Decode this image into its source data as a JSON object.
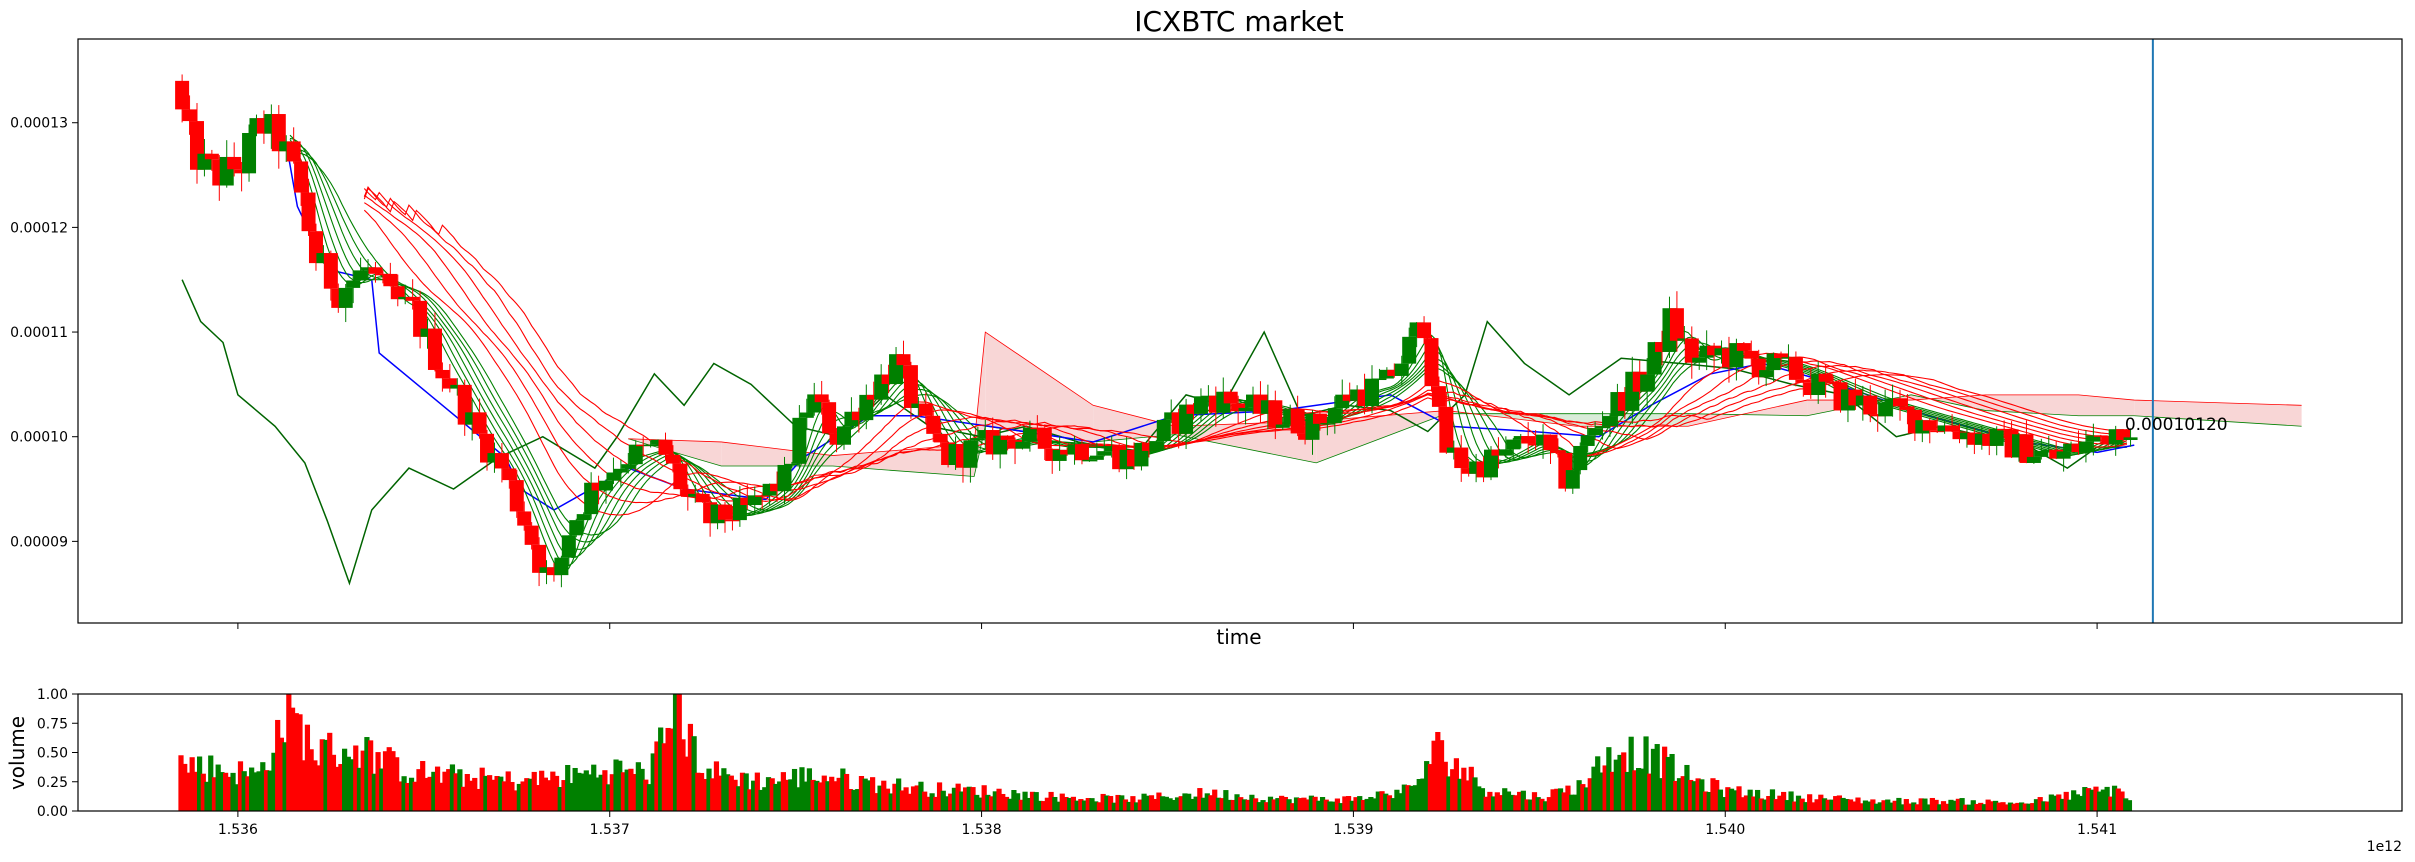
{
  "chart_data": [
    {
      "type": "candlestick",
      "title": "ICXBTC market",
      "xlabel": "time",
      "ylabel": "",
      "xlim": [
        1535.57,
        1541.82
      ],
      "ylim": [
        8.22e-05,
        0.000138
      ],
      "x_ticks": [
        1536.0,
        1537.0,
        1538.0,
        1539.0,
        1540.0,
        1541.0
      ],
      "x_tick_labels": [
        "",
        "",
        "",
        "",
        "",
        ""
      ],
      "y_ticks": [
        9e-05,
        0.0001,
        0.00011,
        0.00012,
        0.00013
      ],
      "y_tick_labels": [
        "0.00009",
        "0.00010",
        "0.00011",
        "0.00012",
        "0.00013"
      ],
      "last_price_label": "0.00010120",
      "last_price": 0.0001012,
      "vertical_marker_x": 1541.15,
      "grid": false,
      "colors": {
        "up": "#008000",
        "down": "#ff0000",
        "ema_ribbon_fast": "#008000",
        "ema_ribbon_slow": "#ff0000",
        "kijun": "#0000ff",
        "chikou": "#006400",
        "marker": "#1f77b4",
        "cloud_bull": "#d8ecd8",
        "cloud_bear": "#f8d6d6"
      },
      "price_path": [
        [
          1535.84,
          0.000134
        ],
        [
          1535.87,
          0.000129
        ],
        [
          1535.91,
          0.000126
        ],
        [
          1535.96,
          0.000125
        ],
        [
          1536.02,
          0.000126
        ],
        [
          1536.07,
          0.00013
        ],
        [
          1536.13,
          0.000128
        ],
        [
          1536.18,
          0.000123
        ],
        [
          1536.22,
          0.000117
        ],
        [
          1536.28,
          0.000114
        ],
        [
          1536.36,
          0.000116
        ],
        [
          1536.42,
          0.000113
        ],
        [
          1536.48,
          0.000112
        ],
        [
          1536.55,
          0.000107
        ],
        [
          1536.6,
          0.000104
        ],
        [
          1536.66,
          0.0001
        ],
        [
          1536.72,
          9.7e-05
        ],
        [
          1536.78,
          9.2e-05
        ],
        [
          1536.82,
          8.8e-05
        ],
        [
          1536.86,
          8.6e-05
        ],
        [
          1536.9,
          9.1e-05
        ],
        [
          1536.96,
          9.5e-05
        ],
        [
          1537.05,
          9.8e-05
        ],
        [
          1537.15,
          9.9e-05
        ],
        [
          1537.22,
          9.4e-05
        ],
        [
          1537.28,
          9.2e-05
        ],
        [
          1537.38,
          9.3e-05
        ],
        [
          1537.48,
          9.6e-05
        ],
        [
          1537.55,
          0.000104
        ],
        [
          1537.62,
          0.0001
        ],
        [
          1537.7,
          0.000104
        ],
        [
          1537.78,
          0.000107
        ],
        [
          1537.85,
          0.000101
        ],
        [
          1537.92,
          9.8e-05
        ],
        [
          1538.0,
          9.9e-05
        ],
        [
          1538.1,
          0.0001
        ],
        [
          1538.2,
          9.9e-05
        ],
        [
          1538.3,
          9.9e-05
        ],
        [
          1538.42,
          9.8e-05
        ],
        [
          1538.52,
          0.000101
        ],
        [
          1538.62,
          0.000104
        ],
        [
          1538.7,
          0.000103
        ],
        [
          1538.8,
          0.000102
        ],
        [
          1538.9,
          0.000101
        ],
        [
          1539.0,
          0.000104
        ],
        [
          1539.1,
          0.000105
        ],
        [
          1539.2,
          0.000111
        ],
        [
          1539.25,
          9.9e-05
        ],
        [
          1539.32,
          9.7e-05
        ],
        [
          1539.4,
          9.8e-05
        ],
        [
          1539.5,
          0.0001
        ],
        [
          1539.58,
          9.6e-05
        ],
        [
          1539.66,
          0.000101
        ],
        [
          1539.74,
          0.000104
        ],
        [
          1539.8,
          0.000106
        ],
        [
          1539.86,
          0.000111
        ],
        [
          1539.93,
          0.000107
        ],
        [
          1540.0,
          0.000108
        ],
        [
          1540.1,
          0.000107
        ],
        [
          1540.2,
          0.000106
        ],
        [
          1540.3,
          0.000104
        ],
        [
          1540.4,
          0.000103
        ],
        [
          1540.5,
          0.000102
        ],
        [
          1540.6,
          0.000101
        ],
        [
          1540.7,
          0.0001
        ],
        [
          1540.8,
          9.9e-05
        ],
        [
          1540.9,
          9.8e-05
        ],
        [
          1540.96,
          9.9e-05
        ],
        [
          1541.02,
          0.0001
        ],
        [
          1541.08,
          0.0001012
        ]
      ],
      "kijun": [
        [
          1536.13,
          0.000128
        ],
        [
          1536.16,
          0.000122
        ],
        [
          1536.24,
          0.000116
        ],
        [
          1536.36,
          0.000115
        ],
        [
          1536.38,
          0.000108
        ],
        [
          1536.55,
          0.000103
        ],
        [
          1536.72,
          9.8e-05
        ],
        [
          1536.76,
          9.5e-05
        ],
        [
          1536.85,
          9.3e-05
        ],
        [
          1537.05,
          9.7e-05
        ],
        [
          1537.2,
          9.5e-05
        ],
        [
          1537.42,
          9.4e-05
        ],
        [
          1537.52,
          9.8e-05
        ],
        [
          1537.7,
          0.000102
        ],
        [
          1537.82,
          0.000102
        ],
        [
          1538.02,
          0.000101
        ],
        [
          1538.3,
          9.95e-05
        ],
        [
          1538.52,
          0.000102
        ],
        [
          1538.8,
          0.0001025
        ],
        [
          1539.1,
          0.000104
        ],
        [
          1539.26,
          0.000101
        ],
        [
          1539.48,
          0.0001005
        ],
        [
          1539.66,
          0.0001
        ],
        [
          1539.8,
          0.000103
        ],
        [
          1539.96,
          0.000106
        ],
        [
          1540.1,
          0.000107
        ],
        [
          1540.3,
          0.000105
        ],
        [
          1540.55,
          0.000102
        ],
        [
          1540.8,
          9.95e-05
        ],
        [
          1541.0,
          9.85e-05
        ],
        [
          1541.1,
          9.92e-05
        ]
      ],
      "chikou": [
        [
          1535.85,
          0.000115
        ],
        [
          1535.9,
          0.000111
        ],
        [
          1535.96,
          0.000109
        ],
        [
          1536.0,
          0.000104
        ],
        [
          1536.05,
          0.0001025
        ],
        [
          1536.1,
          0.000101
        ],
        [
          1536.18,
          9.75e-05
        ],
        [
          1536.24,
          9.2e-05
        ],
        [
          1536.3,
          8.6e-05
        ],
        [
          1536.36,
          9.3e-05
        ],
        [
          1536.46,
          9.7e-05
        ],
        [
          1536.58,
          9.5e-05
        ],
        [
          1536.7,
          9.8e-05
        ],
        [
          1536.82,
          0.0001
        ],
        [
          1536.96,
          9.7e-05
        ],
        [
          1537.02,
          0.0001
        ],
        [
          1537.12,
          0.000106
        ],
        [
          1537.2,
          0.000103
        ],
        [
          1537.28,
          0.000107
        ],
        [
          1537.38,
          0.000105
        ],
        [
          1537.5,
          0.000101
        ],
        [
          1537.62,
          0.0001
        ],
        [
          1537.74,
          0.000104
        ],
        [
          1537.86,
          0.000101
        ],
        [
          1538.0,
          0.0001
        ],
        [
          1538.12,
          0.000101
        ],
        [
          1538.26,
          9.95e-05
        ],
        [
          1538.42,
          9.85e-05
        ],
        [
          1538.55,
          0.000104
        ],
        [
          1538.65,
          0.000103
        ],
        [
          1538.76,
          0.00011
        ],
        [
          1538.86,
          0.000102
        ],
        [
          1538.98,
          0.000103
        ],
        [
          1539.1,
          0.0001025
        ],
        [
          1539.2,
          0.0001005
        ],
        [
          1539.3,
          0.000104
        ],
        [
          1539.36,
          0.000111
        ],
        [
          1539.46,
          0.000107
        ],
        [
          1539.58,
          0.000104
        ],
        [
          1539.72,
          0.0001075
        ],
        [
          1539.88,
          0.000107
        ],
        [
          1540.02,
          0.0001065
        ],
        [
          1540.18,
          0.000105
        ],
        [
          1540.32,
          0.000104
        ],
        [
          1540.46,
          0.0001
        ],
        [
          1540.58,
          0.000101
        ],
        [
          1540.7,
          0.0001
        ],
        [
          1540.82,
          9.9e-05
        ],
        [
          1540.92,
          9.7e-05
        ],
        [
          1541.0,
          9.9e-05
        ],
        [
          1541.08,
          9.9e-05
        ]
      ],
      "cloud": [
        [
          1537.05,
          9.98e-05,
          9.98e-05
        ],
        [
          1537.3,
          9.72e-05,
          9.95e-05
        ],
        [
          1537.6,
          9.72e-05,
          9.82e-05
        ],
        [
          1537.98,
          9.62e-05,
          9.93e-05
        ],
        [
          1538.01,
          0.000101,
          0.00011
        ],
        [
          1538.3,
          9.95e-05,
          0.000103
        ],
        [
          1538.52,
          0.0001002,
          0.000101
        ],
        [
          1538.9,
          9.75e-05,
          0.0001015
        ],
        [
          1539.25,
          0.0001022,
          0.0001025
        ],
        [
          1539.6,
          0.0001022,
          0.000101
        ],
        [
          1539.9,
          0.0001022,
          0.000101
        ],
        [
          1540.22,
          0.000102,
          0.0001035
        ],
        [
          1540.5,
          0.000104,
          0.0001035
        ],
        [
          1540.7,
          0.0001025,
          0.000104
        ],
        [
          1540.95,
          0.000102,
          0.000104
        ],
        [
          1541.1,
          0.000102,
          0.0001035
        ],
        [
          1541.55,
          0.000101,
          0.000103
        ]
      ]
    },
    {
      "type": "bar",
      "xlabel": "",
      "ylabel": "volume",
      "xlim": [
        1535.57,
        1541.82
      ],
      "ylim": [
        0.0,
        1.0
      ],
      "x_ticks": [
        1536.0,
        1537.0,
        1538.0,
        1539.0,
        1540.0,
        1541.0
      ],
      "x_tick_labels": [
        "1.536",
        "1.537",
        "1.538",
        "1.539",
        "1.540",
        "1.541"
      ],
      "y_ticks": [
        0.0,
        0.25,
        0.5,
        0.75,
        1.0
      ],
      "y_tick_labels": [
        "0.00",
        "0.25",
        "0.50",
        "0.75",
        "1.00"
      ],
      "offset_label": "1e12",
      "volume_profile": [
        [
          1535.84,
          0.48
        ],
        [
          1535.95,
          0.42
        ],
        [
          1536.05,
          0.36
        ],
        [
          1536.13,
          1.0
        ],
        [
          1536.2,
          0.6
        ],
        [
          1536.32,
          0.62
        ],
        [
          1536.45,
          0.4
        ],
        [
          1536.6,
          0.34
        ],
        [
          1536.75,
          0.3
        ],
        [
          1536.9,
          0.36
        ],
        [
          1537.0,
          0.42
        ],
        [
          1537.1,
          0.38
        ],
        [
          1537.17,
          1.0
        ],
        [
          1537.25,
          0.4
        ],
        [
          1537.4,
          0.3
        ],
        [
          1537.55,
          0.36
        ],
        [
          1537.7,
          0.28
        ],
        [
          1537.85,
          0.22
        ],
        [
          1538.0,
          0.2
        ],
        [
          1538.2,
          0.14
        ],
        [
          1538.4,
          0.12
        ],
        [
          1538.6,
          0.18
        ],
        [
          1538.8,
          0.12
        ],
        [
          1539.0,
          0.12
        ],
        [
          1539.15,
          0.22
        ],
        [
          1539.22,
          0.62
        ],
        [
          1539.35,
          0.22
        ],
        [
          1539.5,
          0.14
        ],
        [
          1539.6,
          0.25
        ],
        [
          1539.7,
          0.62
        ],
        [
          1539.8,
          0.55
        ],
        [
          1539.9,
          0.32
        ],
        [
          1540.0,
          0.2
        ],
        [
          1540.2,
          0.14
        ],
        [
          1540.4,
          0.1
        ],
        [
          1540.6,
          0.1
        ],
        [
          1540.8,
          0.08
        ],
        [
          1540.95,
          0.18
        ],
        [
          1541.05,
          0.22
        ],
        [
          1541.1,
          0.06
        ]
      ]
    }
  ]
}
